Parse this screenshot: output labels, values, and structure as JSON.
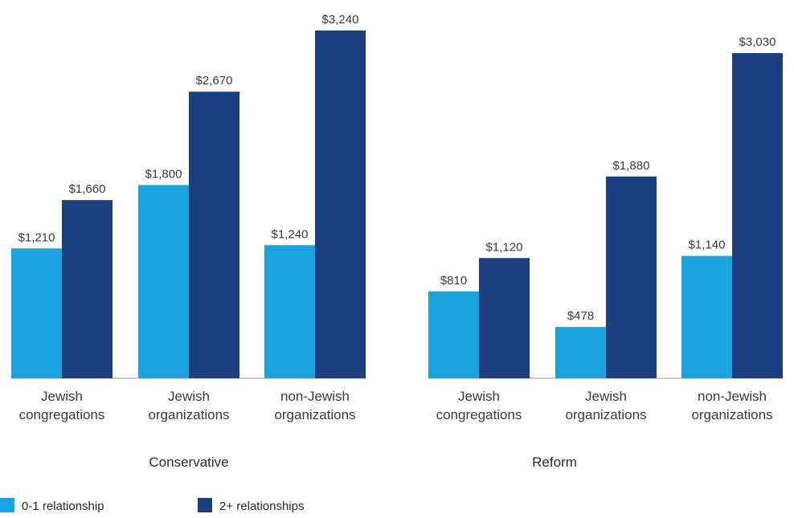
{
  "chart_data": {
    "type": "bar",
    "groups": [
      {
        "name": "Conservative",
        "categories": [
          [
            "Jewish",
            "congregations"
          ],
          [
            "Jewish",
            "organizations"
          ],
          [
            "non-Jewish",
            "organizations"
          ]
        ],
        "series": [
          {
            "name": "0-1 relationship",
            "values": [
              1210,
              1800,
              1240
            ],
            "labels": [
              "$1,210",
              "$1,800",
              "$1,240"
            ]
          },
          {
            "name": "2+ relationships",
            "values": [
              1660,
              2670,
              3240
            ],
            "labels": [
              "$1,660",
              "$2,670",
              "$3,240"
            ]
          }
        ]
      },
      {
        "name": "Reform",
        "categories": [
          [
            "Jewish",
            "congregations"
          ],
          [
            "Jewish",
            "organizations"
          ],
          [
            "non-Jewish",
            "organizations"
          ]
        ],
        "series": [
          {
            "name": "0-1 relationship",
            "values": [
              810,
              478,
              1140
            ],
            "labels": [
              "$810",
              "$478",
              "$1,140"
            ]
          },
          {
            "name": "2+ relationships",
            "values": [
              1120,
              1880,
              3030
            ],
            "labels": [
              "$1,120",
              "$1,880",
              "$3,030"
            ]
          }
        ]
      }
    ],
    "legend": [
      {
        "name": "0-1 relationship",
        "color": "#1aa3df"
      },
      {
        "name": "2+ relationships",
        "color": "#1c3f80"
      }
    ],
    "ylim": [
      0,
      3240
    ],
    "grid": false,
    "legend_position": "bottom-left"
  }
}
